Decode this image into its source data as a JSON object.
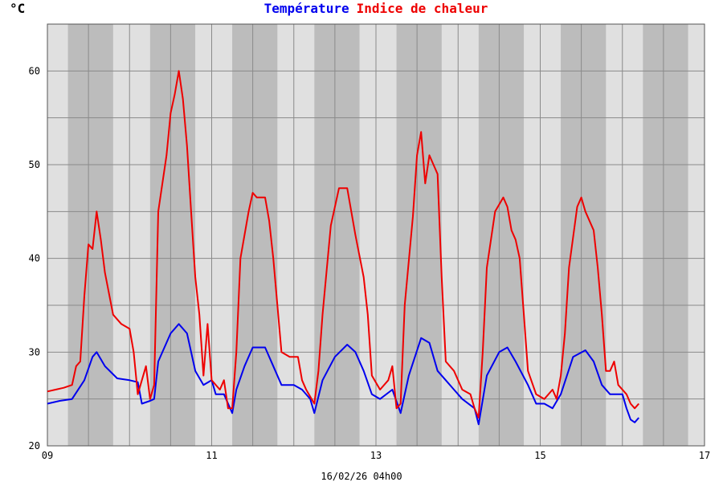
{
  "chart_data": {
    "type": "line",
    "title": {
      "series1": "Température",
      "series2": "Indice de chaleur"
    },
    "unit_label": "°C",
    "footer": "16/02/26 04h00",
    "xlim": [
      9,
      17
    ],
    "ylim": [
      20,
      65
    ],
    "y_ticks": [
      20,
      30,
      40,
      50,
      60
    ],
    "x_ticks": [
      "09",
      "11",
      "13",
      "15",
      "17"
    ],
    "grid": true,
    "night_bands": [
      [
        9.25,
        9.8
      ],
      [
        10.25,
        10.8
      ],
      [
        11.25,
        11.8
      ],
      [
        12.25,
        12.8
      ],
      [
        13.25,
        13.8
      ],
      [
        14.25,
        14.8
      ],
      [
        15.25,
        15.8
      ],
      [
        16.25,
        16.8
      ]
    ],
    "colors": {
      "series1": "#0000ee",
      "series2": "#ee0000",
      "day": "#e0e0e0",
      "night": "#bcbcbc"
    },
    "series": [
      {
        "name": "Température",
        "color": "#0000ee",
        "points": [
          [
            9.0,
            24.5
          ],
          [
            9.15,
            24.8
          ],
          [
            9.3,
            25.0
          ],
          [
            9.45,
            27.0
          ],
          [
            9.55,
            29.5
          ],
          [
            9.6,
            30.0
          ],
          [
            9.7,
            28.5
          ],
          [
            9.85,
            27.2
          ],
          [
            10.0,
            27.0
          ],
          [
            10.1,
            26.8
          ],
          [
            10.15,
            24.5
          ],
          [
            10.25,
            24.8
          ],
          [
            10.3,
            25.0
          ],
          [
            10.35,
            29.0
          ],
          [
            10.5,
            32.0
          ],
          [
            10.6,
            33.0
          ],
          [
            10.7,
            32.0
          ],
          [
            10.8,
            28.0
          ],
          [
            10.9,
            26.5
          ],
          [
            11.0,
            27.0
          ],
          [
            11.05,
            25.5
          ],
          [
            11.15,
            25.5
          ],
          [
            11.25,
            23.5
          ],
          [
            11.3,
            26.0
          ],
          [
            11.4,
            28.5
          ],
          [
            11.5,
            30.5
          ],
          [
            11.65,
            30.5
          ],
          [
            11.75,
            28.5
          ],
          [
            11.85,
            26.5
          ],
          [
            12.0,
            26.5
          ],
          [
            12.1,
            26.0
          ],
          [
            12.2,
            25.0
          ],
          [
            12.25,
            23.5
          ],
          [
            12.35,
            27.0
          ],
          [
            12.5,
            29.5
          ],
          [
            12.65,
            30.8
          ],
          [
            12.75,
            30.0
          ],
          [
            12.85,
            28.0
          ],
          [
            12.95,
            25.5
          ],
          [
            13.05,
            25.0
          ],
          [
            13.2,
            26.0
          ],
          [
            13.3,
            23.5
          ],
          [
            13.4,
            27.5
          ],
          [
            13.55,
            31.5
          ],
          [
            13.65,
            31.0
          ],
          [
            13.75,
            28.0
          ],
          [
            13.85,
            27.0
          ],
          [
            13.95,
            26.0
          ],
          [
            14.05,
            25.0
          ],
          [
            14.2,
            24.0
          ],
          [
            14.25,
            22.3
          ],
          [
            14.35,
            27.5
          ],
          [
            14.5,
            30.0
          ],
          [
            14.6,
            30.5
          ],
          [
            14.7,
            29.0
          ],
          [
            14.85,
            26.5
          ],
          [
            14.95,
            24.5
          ],
          [
            15.05,
            24.5
          ],
          [
            15.15,
            24.0
          ],
          [
            15.25,
            25.5
          ],
          [
            15.4,
            29.5
          ],
          [
            15.55,
            30.2
          ],
          [
            15.65,
            29.0
          ],
          [
            15.75,
            26.5
          ],
          [
            15.85,
            25.5
          ],
          [
            16.0,
            25.5
          ],
          [
            16.05,
            24.0
          ],
          [
            16.1,
            22.8
          ],
          [
            16.15,
            22.5
          ],
          [
            16.2,
            23.0
          ]
        ]
      },
      {
        "name": "Indice de chaleur",
        "color": "#ee0000",
        "points": [
          [
            9.0,
            25.8
          ],
          [
            9.1,
            26.0
          ],
          [
            9.2,
            26.2
          ],
          [
            9.3,
            26.5
          ],
          [
            9.35,
            28.5
          ],
          [
            9.4,
            29.0
          ],
          [
            9.45,
            36.0
          ],
          [
            9.5,
            41.5
          ],
          [
            9.55,
            41.0
          ],
          [
            9.6,
            45.0
          ],
          [
            9.65,
            42.0
          ],
          [
            9.7,
            38.5
          ],
          [
            9.8,
            34.0
          ],
          [
            9.9,
            33.0
          ],
          [
            10.0,
            32.5
          ],
          [
            10.05,
            30.0
          ],
          [
            10.1,
            25.5
          ],
          [
            10.2,
            28.5
          ],
          [
            10.25,
            25.0
          ],
          [
            10.3,
            26.5
          ],
          [
            10.35,
            45.0
          ],
          [
            10.45,
            51.0
          ],
          [
            10.5,
            55.5
          ],
          [
            10.55,
            57.5
          ],
          [
            10.6,
            60.0
          ],
          [
            10.65,
            57.0
          ],
          [
            10.7,
            52.0
          ],
          [
            10.75,
            45.0
          ],
          [
            10.8,
            38.0
          ],
          [
            10.85,
            34.0
          ],
          [
            10.9,
            27.5
          ],
          [
            10.95,
            33.0
          ],
          [
            11.0,
            27.0
          ],
          [
            11.1,
            26.0
          ],
          [
            11.15,
            27.0
          ],
          [
            11.2,
            24.0
          ],
          [
            11.25,
            24.0
          ],
          [
            11.3,
            30.0
          ],
          [
            11.35,
            40.0
          ],
          [
            11.45,
            45.0
          ],
          [
            11.5,
            47.0
          ],
          [
            11.55,
            46.5
          ],
          [
            11.65,
            46.5
          ],
          [
            11.7,
            44.0
          ],
          [
            11.75,
            40.0
          ],
          [
            11.8,
            35.0
          ],
          [
            11.85,
            30.0
          ],
          [
            11.95,
            29.5
          ],
          [
            12.05,
            29.5
          ],
          [
            12.1,
            27.0
          ],
          [
            12.15,
            26.0
          ],
          [
            12.25,
            24.5
          ],
          [
            12.3,
            28.0
          ],
          [
            12.35,
            34.0
          ],
          [
            12.45,
            43.5
          ],
          [
            12.55,
            47.5
          ],
          [
            12.65,
            47.5
          ],
          [
            12.7,
            45.0
          ],
          [
            12.75,
            42.5
          ],
          [
            12.85,
            38.0
          ],
          [
            12.9,
            34.0
          ],
          [
            12.95,
            27.5
          ],
          [
            13.05,
            26.0
          ],
          [
            13.15,
            27.0
          ],
          [
            13.2,
            28.5
          ],
          [
            13.25,
            24.0
          ],
          [
            13.3,
            24.5
          ],
          [
            13.35,
            35.0
          ],
          [
            13.45,
            44.5
          ],
          [
            13.5,
            51.0
          ],
          [
            13.55,
            53.5
          ],
          [
            13.6,
            48.0
          ],
          [
            13.65,
            51.0
          ],
          [
            13.7,
            50.0
          ],
          [
            13.75,
            49.0
          ],
          [
            13.8,
            38.0
          ],
          [
            13.85,
            29.0
          ],
          [
            13.95,
            28.0
          ],
          [
            14.05,
            26.0
          ],
          [
            14.15,
            25.5
          ],
          [
            14.2,
            24.0
          ],
          [
            14.25,
            23.0
          ],
          [
            14.3,
            30.0
          ],
          [
            14.35,
            39.0
          ],
          [
            14.45,
            45.0
          ],
          [
            14.55,
            46.5
          ],
          [
            14.6,
            45.5
          ],
          [
            14.65,
            43.0
          ],
          [
            14.7,
            42.0
          ],
          [
            14.75,
            40.0
          ],
          [
            14.8,
            34.0
          ],
          [
            14.85,
            28.0
          ],
          [
            14.95,
            25.5
          ],
          [
            15.05,
            25.0
          ],
          [
            15.15,
            26.0
          ],
          [
            15.2,
            25.0
          ],
          [
            15.25,
            27.5
          ],
          [
            15.3,
            32.0
          ],
          [
            15.35,
            39.0
          ],
          [
            15.45,
            45.5
          ],
          [
            15.5,
            46.5
          ],
          [
            15.55,
            45.0
          ],
          [
            15.65,
            43.0
          ],
          [
            15.7,
            39.0
          ],
          [
            15.75,
            34.0
          ],
          [
            15.8,
            28.0
          ],
          [
            15.85,
            28.0
          ],
          [
            15.9,
            29.0
          ],
          [
            15.95,
            26.5
          ],
          [
            16.05,
            25.5
          ],
          [
            16.1,
            24.5
          ],
          [
            16.15,
            24.0
          ],
          [
            16.2,
            24.5
          ]
        ]
      }
    ]
  }
}
